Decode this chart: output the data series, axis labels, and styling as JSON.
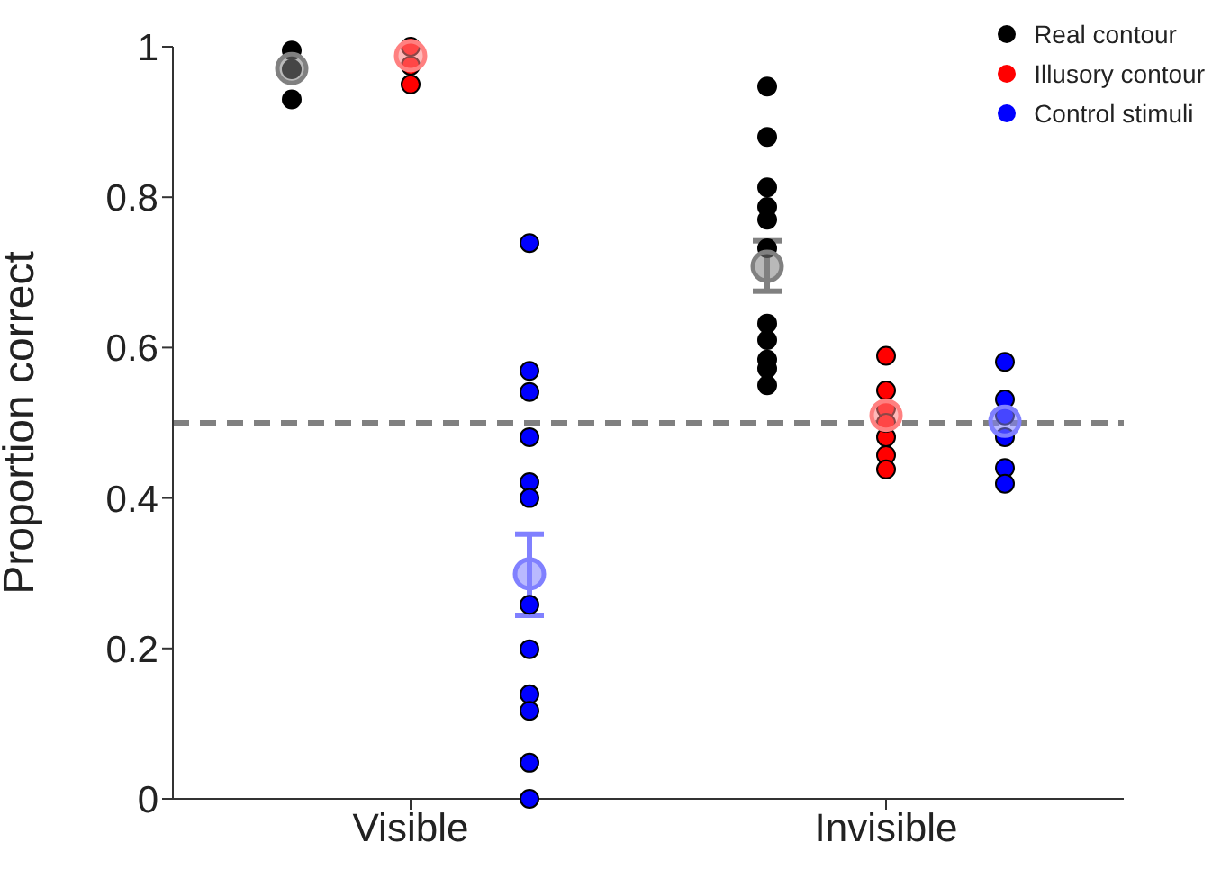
{
  "chart_data": {
    "type": "scatter",
    "ylabel": "Proportion correct",
    "categories": [
      "Visible",
      "Invisible"
    ],
    "ylim": [
      0,
      1
    ],
    "yticks": [
      0,
      0.2,
      0.4,
      0.6,
      0.8,
      1
    ],
    "grid": false,
    "legend": "top right",
    "marker": "circle",
    "ref_lines": [
      {
        "axis": "y",
        "value": 0.5,
        "color": "#808080",
        "line_style": "dashed"
      }
    ],
    "series": [
      {
        "name": "Real contour",
        "color": "#000000",
        "x": [
          "Visible",
          "Visible",
          "Visible",
          "Invisible",
          "Invisible",
          "Invisible",
          "Invisible",
          "Invisible",
          "Invisible",
          "Invisible",
          "Invisible",
          "Invisible",
          "Invisible",
          "Invisible"
        ],
        "values": [
          0.995,
          0.97,
          0.93,
          0.947,
          0.88,
          0.813,
          0.787,
          0.77,
          0.732,
          0.632,
          0.61,
          0.584,
          0.572,
          0.55
        ]
      },
      {
        "name": "Illusory contour",
        "color": "#ff0000",
        "x": [
          "Visible",
          "Visible",
          "Visible",
          "Invisible",
          "Invisible",
          "Invisible",
          "Invisible",
          "Invisible",
          "Invisible",
          "Invisible"
        ],
        "values": [
          1.0,
          0.975,
          0.95,
          0.589,
          0.543,
          0.519,
          0.481,
          0.457,
          0.438,
          0.5
        ]
      },
      {
        "name": "Control stimuli",
        "color": "#0000ff",
        "x": [
          "Visible",
          "Visible",
          "Visible",
          "Visible",
          "Visible",
          "Visible",
          "Visible",
          "Visible",
          "Visible",
          "Visible",
          "Visible",
          "Visible",
          "Invisible",
          "Invisible",
          "Invisible",
          "Invisible",
          "Invisible",
          "Invisible"
        ],
        "values": [
          0.739,
          0.569,
          0.541,
          0.481,
          0.421,
          0.4,
          0.258,
          0.199,
          0.139,
          0.117,
          0.048,
          0,
          0.581,
          0.531,
          0.51,
          0.481,
          0.44,
          0.419
        ]
      },
      {
        "color": "#808080",
        "x": [
          "Visible",
          "Invisible"
        ],
        "values": [
          0.971,
          0.708
        ],
        "errors": [
          null,
          [
            0.675,
            0.742
          ]
        ]
      },
      {
        "color": "#ff8080",
        "x": [
          "Visible",
          "Invisible"
        ],
        "values": [
          0.988,
          0.51
        ]
      },
      {
        "color": "#8080ff",
        "x": [
          "Visible",
          "Invisible"
        ],
        "values": [
          0.299,
          0.502
        ],
        "errors": [
          [
            0.244,
            0.352
          ],
          null
        ]
      }
    ]
  }
}
